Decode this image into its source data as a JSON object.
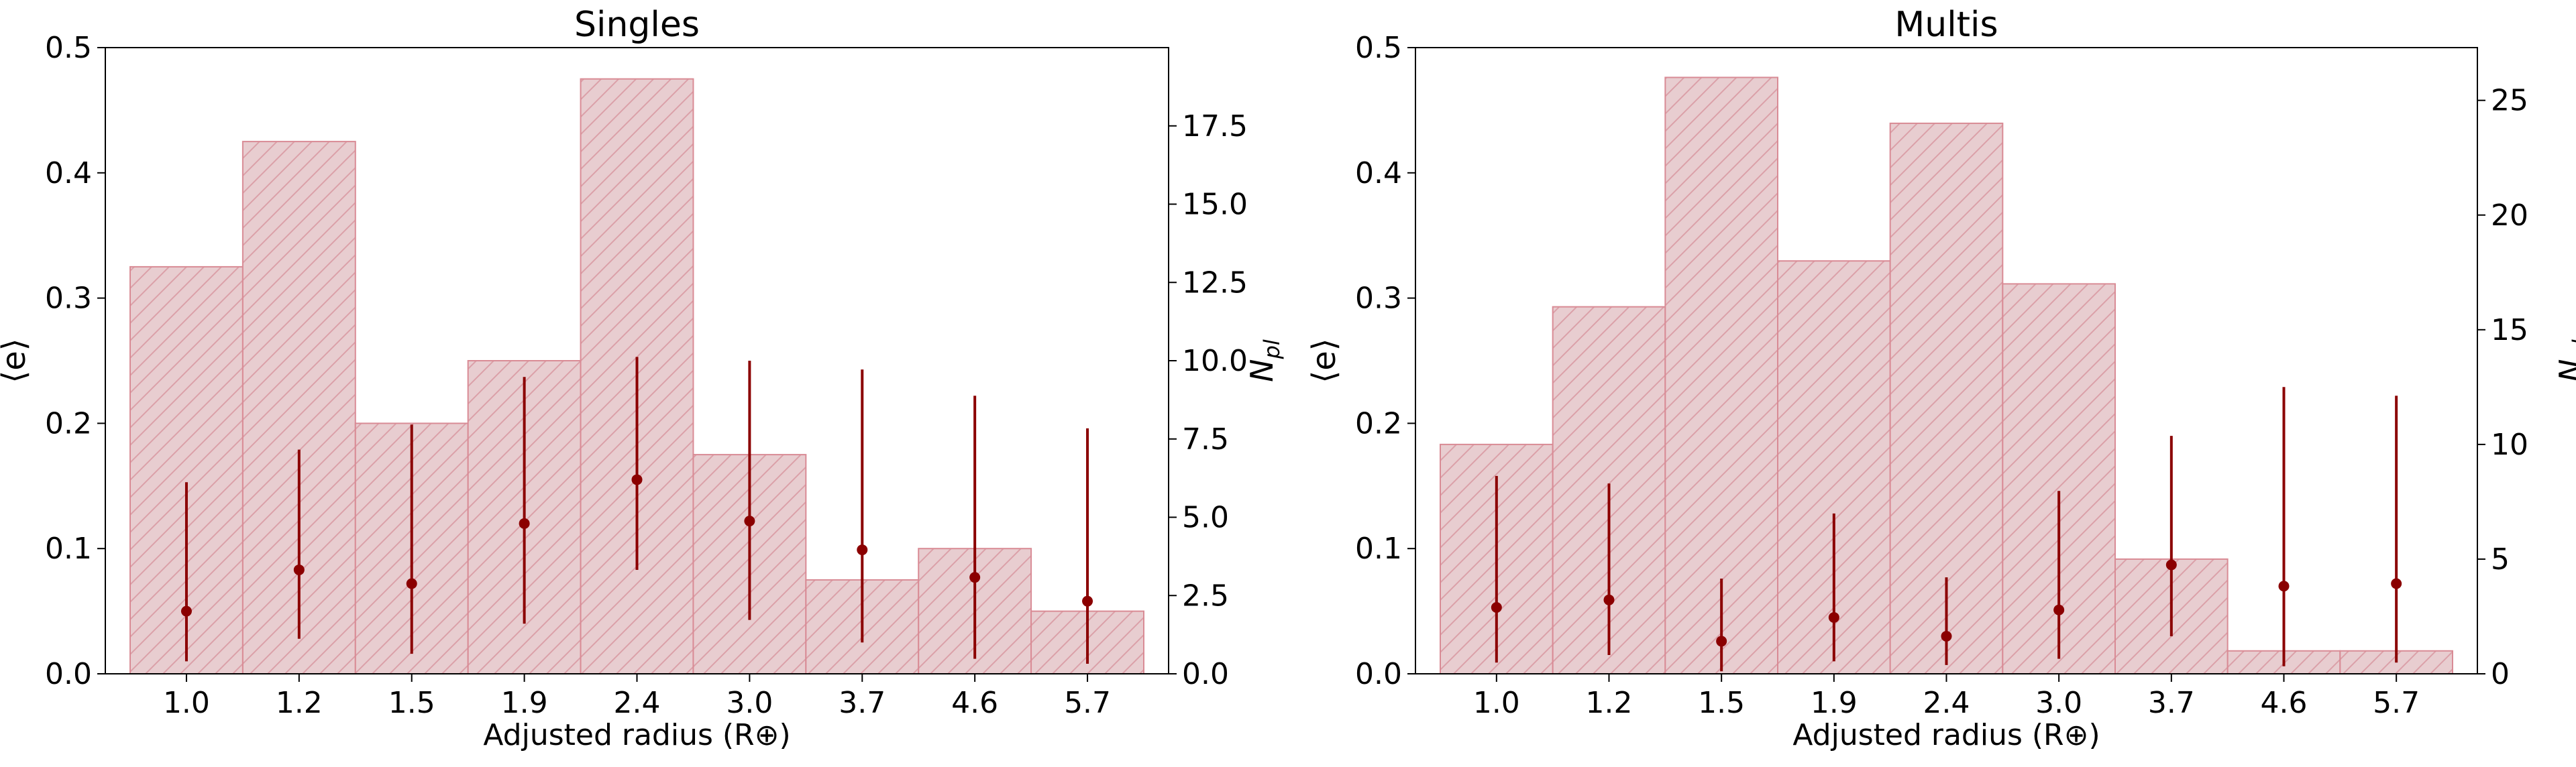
{
  "chart_data": [
    {
      "type": "bar",
      "title": "Singles",
      "xlabel": "Adjusted radius (R⊕)",
      "ylabel": "⟨e⟩",
      "y2label": "N_pl",
      "categories": [
        "1.0",
        "1.2",
        "1.5",
        "1.9",
        "2.4",
        "3.0",
        "3.7",
        "4.6",
        "5.7"
      ],
      "ylim": [
        0,
        0.5
      ],
      "yticks": [
        "0.0",
        "0.1",
        "0.2",
        "0.3",
        "0.4",
        "0.5"
      ],
      "y2lim": [
        0,
        20
      ],
      "y2ticks": [
        "0.0",
        "2.5",
        "5.0",
        "7.5",
        "10.0",
        "12.5",
        "15.0",
        "17.5"
      ],
      "grid": false,
      "series": [
        {
          "kind": "bar",
          "axis": "right",
          "fill": "#e8cdd0",
          "edge": "#d98b95",
          "values": [
            13,
            17,
            8,
            10,
            19,
            7,
            3,
            4,
            2
          ]
        },
        {
          "kind": "errorbar",
          "axis": "left",
          "color": "#8b0000",
          "values": [
            0.05,
            0.083,
            0.072,
            0.12,
            0.155,
            0.122,
            0.099,
            0.077,
            0.058
          ],
          "lower": [
            0.01,
            0.028,
            0.016,
            0.04,
            0.083,
            0.043,
            0.025,
            0.012,
            0.008
          ],
          "upper": [
            0.153,
            0.179,
            0.199,
            0.237,
            0.253,
            0.25,
            0.243,
            0.222,
            0.196
          ]
        }
      ]
    },
    {
      "type": "bar",
      "title": "Multis",
      "xlabel": "Adjusted radius (R⊕)",
      "ylabel": "⟨e⟩",
      "y2label": "N_pl",
      "categories": [
        "1.0",
        "1.2",
        "1.5",
        "1.9",
        "2.4",
        "3.0",
        "3.7",
        "4.6",
        "5.7"
      ],
      "ylim": [
        0,
        0.5
      ],
      "yticks": [
        "0.0",
        "0.1",
        "0.2",
        "0.3",
        "0.4",
        "0.5"
      ],
      "y2lim": [
        0,
        27.3
      ],
      "y2ticks": [
        "0",
        "5",
        "10",
        "15",
        "20",
        "25"
      ],
      "grid": false,
      "series": [
        {
          "kind": "bar",
          "axis": "right",
          "fill": "#e8cdd0",
          "edge": "#d98b95",
          "values": [
            10,
            16,
            26,
            18,
            24,
            17,
            5,
            1,
            1
          ]
        },
        {
          "kind": "errorbar",
          "axis": "left",
          "color": "#8b0000",
          "values": [
            0.053,
            0.059,
            0.026,
            0.045,
            0.03,
            0.051,
            0.087,
            0.07,
            0.072
          ],
          "lower": [
            0.009,
            0.015,
            0.002,
            0.01,
            0.007,
            0.012,
            0.03,
            0.006,
            0.009
          ],
          "upper": [
            0.158,
            0.152,
            0.076,
            0.128,
            0.077,
            0.146,
            0.19,
            0.229,
            0.222
          ]
        }
      ]
    }
  ]
}
